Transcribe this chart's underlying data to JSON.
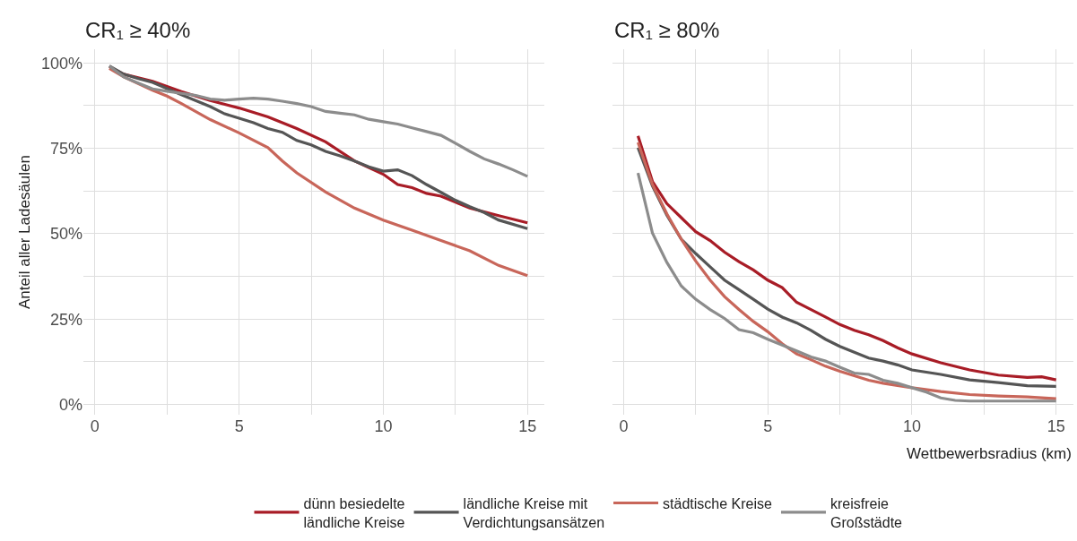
{
  "chart_data": [
    {
      "type": "line",
      "title": "CR₁ ≥ 40%",
      "ylabel": "Anteil aller Ladesäulen",
      "legend": "bottom",
      "grid": true,
      "xlim": [
        -0.4,
        15.6
      ],
      "xticks": [
        0,
        {
          "value": 2.5,
          "label": null
        },
        5,
        {
          "value": 7.5,
          "label": null
        },
        10,
        {
          "value": 12.5,
          "label": null
        },
        15
      ],
      "ylim": [
        -3,
        104
      ],
      "yticks": [
        {
          "value": 0,
          "label": "0%"
        },
        {
          "value": 12.5,
          "label": null
        },
        {
          "value": 25,
          "label": "25%"
        },
        {
          "value": 37.5,
          "label": null
        },
        {
          "value": 50,
          "label": "50%"
        },
        {
          "value": 62.5,
          "label": null
        },
        {
          "value": 75,
          "label": "75%"
        },
        {
          "value": 87.5,
          "label": null
        },
        {
          "value": 100,
          "label": "100%"
        }
      ],
      "series": [
        {
          "name": "dünn besiedelte\nländliche Kreise",
          "color": "#a81c26",
          "x": [
            0.5,
            1,
            2,
            3,
            4,
            5,
            6,
            7,
            8,
            9,
            10,
            10.5,
            11,
            11.5,
            12,
            13,
            14,
            15
          ],
          "values": [
            98.9,
            96.7,
            94.6,
            91.6,
            89,
            86.8,
            84.2,
            80.8,
            76.9,
            71.3,
            67.4,
            64.4,
            63.5,
            61.8,
            61,
            57.5,
            55.3,
            53.2
          ]
        },
        {
          "name": "ländliche Kreise mit\nVerdichtungsansätzen",
          "color": "#555555",
          "x": [
            0.5,
            1,
            1.5,
            2,
            3,
            4,
            4.5,
            5,
            5.5,
            6,
            6.5,
            7,
            7.5,
            8,
            8.5,
            9,
            9.5,
            10,
            10.5,
            11,
            11.5,
            12,
            12.5,
            13,
            13.5,
            14,
            15
          ],
          "values": [
            99.1,
            96.7,
            95.4,
            94.3,
            90.7,
            87.2,
            85.1,
            83.8,
            82.5,
            80.8,
            79.7,
            77.3,
            76,
            74.1,
            72.8,
            71.3,
            69.6,
            68.3,
            68.7,
            67,
            64.4,
            62.1,
            59.8,
            57.9,
            56.2,
            54,
            51.5
          ]
        },
        {
          "name": "städtische Kreise",
          "color": "#c8665a",
          "x": [
            0.5,
            1,
            2,
            2.5,
            3,
            4,
            5,
            6,
            6.5,
            7,
            8,
            9,
            10,
            11,
            12,
            13,
            14,
            15
          ],
          "values": [
            98.4,
            95.9,
            92,
            90.3,
            88.1,
            83.4,
            79.5,
            75.2,
            71.3,
            67.8,
            62.2,
            57.5,
            54,
            51,
            48,
            45,
            40.7,
            37.7
          ]
        },
        {
          "name": "kreisfreie\nGroßstädte",
          "color": "#8c8c8c",
          "x": [
            0.5,
            1,
            1.5,
            2,
            2.5,
            3,
            3.5,
            4,
            4.5,
            5,
            5.5,
            6,
            6.5,
            7,
            7.5,
            8,
            8.5,
            9,
            9.5,
            10,
            10.5,
            11,
            11.5,
            12,
            12.5,
            13,
            13.5,
            14,
            14.5,
            15
          ],
          "values": [
            99.1,
            95.9,
            94.1,
            92.4,
            91.7,
            91.1,
            90.5,
            89.4,
            89.1,
            89.4,
            89.7,
            89.4,
            88.8,
            88.1,
            87.2,
            85.8,
            85.3,
            84.8,
            83.5,
            82.8,
            82.1,
            81,
            79.9,
            78.8,
            76.5,
            74.1,
            71.9,
            70.4,
            68.7,
            66.8
          ]
        }
      ]
    },
    {
      "type": "line",
      "title": "CR₁ ≥ 80%",
      "xlabel": "Wettbewerbsradius (km)",
      "legend": "bottom",
      "grid": true,
      "tick_labels": "x",
      "xlim": [
        -0.4,
        15.6
      ],
      "xticks": [
        0,
        {
          "value": 2.5,
          "label": null
        },
        5,
        {
          "value": 7.5,
          "label": null
        },
        10,
        {
          "value": 12.5,
          "label": null
        },
        15
      ],
      "ylim": [
        -3,
        104
      ],
      "yticks": [
        {
          "value": 0,
          "label": null
        },
        {
          "value": 12.5,
          "label": null
        },
        {
          "value": 25,
          "label": null
        },
        {
          "value": 37.5,
          "label": null
        },
        {
          "value": 50,
          "label": null
        },
        {
          "value": 62.5,
          "label": null
        },
        {
          "value": 75,
          "label": null
        },
        {
          "value": 87.5,
          "label": null
        },
        {
          "value": 100,
          "label": null
        }
      ],
      "series": [
        {
          "name": "dünn besiedelte\nländliche Kreise",
          "color": "#a81c26",
          "x": [
            0.5,
            1,
            1.5,
            2,
            2.5,
            3,
            3.5,
            4,
            4.5,
            5,
            5.5,
            6,
            6.5,
            7,
            7.5,
            8,
            8.5,
            9,
            9.5,
            10,
            11,
            12,
            13,
            14,
            14.5,
            15
          ],
          "values": [
            78.6,
            65.3,
            58.8,
            54.7,
            50.6,
            48,
            44.6,
            41.8,
            39.4,
            36.4,
            34.2,
            29.9,
            27.8,
            25.6,
            23.4,
            21.7,
            20.4,
            18.7,
            16.6,
            14.8,
            12.2,
            10.1,
            8.6,
            7.9,
            8.1,
            7.2
          ]
        },
        {
          "name": "ländliche Kreise mit\nVerdichtungsansätzen",
          "color": "#555555",
          "x": [
            0.5,
            1,
            1.5,
            2,
            2.5,
            3,
            3.5,
            4,
            4.5,
            5,
            5.5,
            6,
            6.5,
            7,
            7.5,
            8,
            8.5,
            9,
            9.5,
            10,
            11,
            12,
            13,
            14,
            15
          ],
          "values": [
            75.2,
            64,
            55.4,
            48.4,
            44.2,
            40.3,
            36.4,
            33.6,
            30.8,
            27.9,
            25.6,
            23.9,
            21.7,
            19.1,
            17,
            15.3,
            13.6,
            12.7,
            11.6,
            10.1,
            8.8,
            7.2,
            6.4,
            5.5,
            5.3
          ]
        },
        {
          "name": "städtische Kreise",
          "color": "#c8665a",
          "x": [
            0.5,
            1,
            1.5,
            2,
            2.5,
            3,
            3.5,
            4,
            4.5,
            5,
            5.5,
            6,
            6.5,
            7,
            7.5,
            8,
            8.5,
            9,
            10,
            11,
            12,
            13,
            14,
            15
          ],
          "values": [
            76.7,
            64.4,
            55.8,
            48.4,
            42,
            36.4,
            31.6,
            27.8,
            24.3,
            21.3,
            17.8,
            14.8,
            13.1,
            11.2,
            9.7,
            8.4,
            7.1,
            6.2,
            4.9,
            3.8,
            2.9,
            2.5,
            2.2,
            1.7
          ]
        },
        {
          "name": "kreisfreie\nGroßstädte",
          "color": "#8c8c8c",
          "x": [
            0.5,
            1,
            1.5,
            2,
            2.5,
            3,
            3.5,
            4,
            4.5,
            5,
            5.5,
            6,
            6.5,
            7,
            7.5,
            8,
            8.5,
            9,
            9.5,
            10,
            10.5,
            11,
            11.5,
            12,
            13,
            15
          ],
          "values": [
            67.8,
            50.2,
            41.6,
            34.7,
            30.8,
            27.8,
            25.2,
            21.9,
            21,
            19.1,
            17.4,
            15.7,
            13.9,
            12.7,
            10.9,
            9.2,
            8.8,
            7.1,
            6.2,
            4.9,
            3.6,
            1.9,
            1.2,
            1.0,
            1,
            1
          ]
        }
      ]
    }
  ]
}
